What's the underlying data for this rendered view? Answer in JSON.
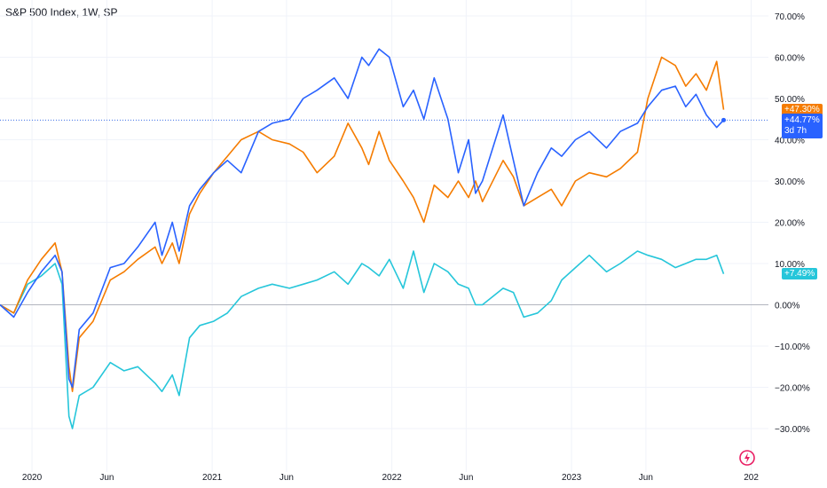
{
  "header": {
    "title": "S&P 500 Index, 1W, SP"
  },
  "countdown": "3d 7h",
  "colors": {
    "blue": "#2962ff",
    "orange": "#f57c00",
    "teal": "#26c6da",
    "zero_line": "#b2b5be",
    "price_line": "#3b6fe6",
    "axis_text": "#131722",
    "logo": "#e91e63"
  },
  "chart_data": {
    "type": "line",
    "title": "S&P 500 Index, 1W, SP",
    "xlabel": "",
    "ylabel": "",
    "ylim": [
      -35,
      72
    ],
    "xlim": [
      "2019-10-28",
      "2024-02-05"
    ],
    "y_ticks": [
      70,
      60,
      50,
      40,
      30,
      20,
      10,
      0,
      -10,
      -20,
      -30
    ],
    "y_tick_labels": [
      "70.00%",
      "60.00%",
      "50.00%",
      "40.00%",
      "30.00%",
      "20.00%",
      "10.00%",
      "0.00%",
      "−10.00%",
      "−20.00%",
      "−30.00%"
    ],
    "x_ticks": [
      {
        "date": "2020-01-01",
        "label": "2020"
      },
      {
        "date": "2020-06-01",
        "label": "Jun"
      },
      {
        "date": "2021-01-01",
        "label": "2021"
      },
      {
        "date": "2021-06-01",
        "label": "Jun"
      },
      {
        "date": "2022-01-01",
        "label": "2022"
      },
      {
        "date": "2022-06-01",
        "label": "Jun"
      },
      {
        "date": "2023-01-01",
        "label": "2023"
      },
      {
        "date": "2023-06-01",
        "label": "Jun"
      },
      {
        "date": "2024-01-01",
        "label": "202"
      }
    ],
    "grid": true,
    "series": [
      {
        "color": "#2962ff",
        "last_label": "+44.77%",
        "values": [
          [
            "2019-10-28",
            0
          ],
          [
            "2019-11-25",
            -3
          ],
          [
            "2019-12-23",
            3
          ],
          [
            "2020-01-20",
            8
          ],
          [
            "2020-02-17",
            12
          ],
          [
            "2020-03-02",
            8
          ],
          [
            "2020-03-16",
            -18
          ],
          [
            "2020-03-23",
            -20
          ],
          [
            "2020-04-06",
            -6
          ],
          [
            "2020-05-04",
            -2
          ],
          [
            "2020-06-08",
            9
          ],
          [
            "2020-07-06",
            10
          ],
          [
            "2020-08-03",
            14
          ],
          [
            "2020-09-07",
            20
          ],
          [
            "2020-09-21",
            12
          ],
          [
            "2020-10-12",
            20
          ],
          [
            "2020-10-26",
            13
          ],
          [
            "2020-11-16",
            24
          ],
          [
            "2020-12-07",
            28
          ],
          [
            "2021-01-04",
            32
          ],
          [
            "2021-02-01",
            35
          ],
          [
            "2021-03-01",
            32
          ],
          [
            "2021-04-05",
            42
          ],
          [
            "2021-05-03",
            44
          ],
          [
            "2021-06-07",
            45
          ],
          [
            "2021-07-05",
            50
          ],
          [
            "2021-08-02",
            52
          ],
          [
            "2021-09-06",
            55
          ],
          [
            "2021-10-04",
            50
          ],
          [
            "2021-11-01",
            60
          ],
          [
            "2021-11-15",
            58
          ],
          [
            "2021-12-06",
            62
          ],
          [
            "2021-12-27",
            60
          ],
          [
            "2022-01-24",
            48
          ],
          [
            "2022-02-14",
            52
          ],
          [
            "2022-03-07",
            45
          ],
          [
            "2022-03-28",
            55
          ],
          [
            "2022-04-25",
            45
          ],
          [
            "2022-05-16",
            32
          ],
          [
            "2022-06-06",
            40
          ],
          [
            "2022-06-20",
            27
          ],
          [
            "2022-07-04",
            30
          ],
          [
            "2022-08-15",
            46
          ],
          [
            "2022-09-05",
            35
          ],
          [
            "2022-09-26",
            24
          ],
          [
            "2022-10-24",
            32
          ],
          [
            "2022-11-21",
            38
          ],
          [
            "2022-12-12",
            36
          ],
          [
            "2023-01-09",
            40
          ],
          [
            "2023-02-06",
            42
          ],
          [
            "2023-03-13",
            38
          ],
          [
            "2023-04-10",
            42
          ],
          [
            "2023-05-15",
            44
          ],
          [
            "2023-06-05",
            48
          ],
          [
            "2023-07-03",
            52
          ],
          [
            "2023-07-31",
            53
          ],
          [
            "2023-08-21",
            48
          ],
          [
            "2023-09-11",
            51
          ],
          [
            "2023-10-02",
            46
          ],
          [
            "2023-10-23",
            43
          ],
          [
            "2023-11-06",
            44.77
          ]
        ]
      },
      {
        "color": "#f57c00",
        "last_label": "+47.30%",
        "values": [
          [
            "2019-10-28",
            0
          ],
          [
            "2019-11-25",
            -2
          ],
          [
            "2019-12-23",
            6
          ],
          [
            "2020-01-20",
            11
          ],
          [
            "2020-02-17",
            15
          ],
          [
            "2020-03-02",
            8
          ],
          [
            "2020-03-16",
            -15
          ],
          [
            "2020-03-23",
            -21
          ],
          [
            "2020-04-06",
            -8
          ],
          [
            "2020-05-04",
            -4
          ],
          [
            "2020-06-08",
            6
          ],
          [
            "2020-07-06",
            8
          ],
          [
            "2020-08-03",
            11
          ],
          [
            "2020-09-07",
            14
          ],
          [
            "2020-09-21",
            10
          ],
          [
            "2020-10-12",
            15
          ],
          [
            "2020-10-26",
            10
          ],
          [
            "2020-11-16",
            22
          ],
          [
            "2020-12-07",
            27
          ],
          [
            "2021-01-04",
            32
          ],
          [
            "2021-02-01",
            36
          ],
          [
            "2021-03-01",
            40
          ],
          [
            "2021-04-05",
            42
          ],
          [
            "2021-05-03",
            40
          ],
          [
            "2021-06-07",
            39
          ],
          [
            "2021-07-05",
            37
          ],
          [
            "2021-08-02",
            32
          ],
          [
            "2021-09-06",
            36
          ],
          [
            "2021-10-04",
            44
          ],
          [
            "2021-11-01",
            38
          ],
          [
            "2021-11-15",
            34
          ],
          [
            "2021-12-06",
            42
          ],
          [
            "2021-12-27",
            35
          ],
          [
            "2022-01-24",
            30
          ],
          [
            "2022-02-14",
            26
          ],
          [
            "2022-03-07",
            20
          ],
          [
            "2022-03-28",
            29
          ],
          [
            "2022-04-25",
            26
          ],
          [
            "2022-05-16",
            30
          ],
          [
            "2022-06-06",
            26
          ],
          [
            "2022-06-20",
            30
          ],
          [
            "2022-07-04",
            25
          ],
          [
            "2022-08-15",
            35
          ],
          [
            "2022-09-05",
            31
          ],
          [
            "2022-09-26",
            24
          ],
          [
            "2022-10-24",
            26
          ],
          [
            "2022-11-21",
            28
          ],
          [
            "2022-12-12",
            24
          ],
          [
            "2023-01-09",
            30
          ],
          [
            "2023-02-06",
            32
          ],
          [
            "2023-03-13",
            31
          ],
          [
            "2023-04-10",
            33
          ],
          [
            "2023-05-15",
            37
          ],
          [
            "2023-06-05",
            50
          ],
          [
            "2023-07-03",
            60
          ],
          [
            "2023-07-31",
            58
          ],
          [
            "2023-08-21",
            53
          ],
          [
            "2023-09-11",
            56
          ],
          [
            "2023-10-02",
            52
          ],
          [
            "2023-10-23",
            59
          ],
          [
            "2023-11-06",
            47.3
          ]
        ]
      },
      {
        "color": "#26c6da",
        "last_label": "+7.49%",
        "values": [
          [
            "2019-10-28",
            0
          ],
          [
            "2019-11-25",
            -2
          ],
          [
            "2019-12-23",
            5
          ],
          [
            "2020-01-20",
            7
          ],
          [
            "2020-02-17",
            10
          ],
          [
            "2020-03-02",
            5
          ],
          [
            "2020-03-16",
            -27
          ],
          [
            "2020-03-23",
            -30
          ],
          [
            "2020-04-06",
            -22
          ],
          [
            "2020-05-04",
            -20
          ],
          [
            "2020-06-08",
            -14
          ],
          [
            "2020-07-06",
            -16
          ],
          [
            "2020-08-03",
            -15
          ],
          [
            "2020-09-07",
            -19
          ],
          [
            "2020-09-21",
            -21
          ],
          [
            "2020-10-12",
            -17
          ],
          [
            "2020-10-26",
            -22
          ],
          [
            "2020-11-16",
            -8
          ],
          [
            "2020-12-07",
            -5
          ],
          [
            "2021-01-04",
            -4
          ],
          [
            "2021-02-01",
            -2
          ],
          [
            "2021-03-01",
            2
          ],
          [
            "2021-04-05",
            4
          ],
          [
            "2021-05-03",
            5
          ],
          [
            "2021-06-07",
            4
          ],
          [
            "2021-07-05",
            5
          ],
          [
            "2021-08-02",
            6
          ],
          [
            "2021-09-06",
            8
          ],
          [
            "2021-10-04",
            5
          ],
          [
            "2021-11-01",
            10
          ],
          [
            "2021-11-15",
            9
          ],
          [
            "2021-12-06",
            7
          ],
          [
            "2021-12-27",
            11
          ],
          [
            "2022-01-24",
            4
          ],
          [
            "2022-02-14",
            13
          ],
          [
            "2022-03-07",
            3
          ],
          [
            "2022-03-28",
            10
          ],
          [
            "2022-04-25",
            8
          ],
          [
            "2022-05-16",
            5
          ],
          [
            "2022-06-06",
            4
          ],
          [
            "2022-06-20",
            0
          ],
          [
            "2022-07-04",
            0
          ],
          [
            "2022-08-15",
            4
          ],
          [
            "2022-09-05",
            3
          ],
          [
            "2022-09-26",
            -3
          ],
          [
            "2022-10-24",
            -2
          ],
          [
            "2022-11-21",
            1
          ],
          [
            "2022-12-12",
            6
          ],
          [
            "2023-01-09",
            9
          ],
          [
            "2023-02-06",
            12
          ],
          [
            "2023-03-13",
            8
          ],
          [
            "2023-04-10",
            10
          ],
          [
            "2023-05-15",
            13
          ],
          [
            "2023-06-05",
            12
          ],
          [
            "2023-07-03",
            11
          ],
          [
            "2023-07-31",
            9
          ],
          [
            "2023-08-21",
            10
          ],
          [
            "2023-09-11",
            11
          ],
          [
            "2023-10-02",
            11
          ],
          [
            "2023-10-23",
            12
          ],
          [
            "2023-11-06",
            7.49
          ]
        ]
      }
    ]
  }
}
